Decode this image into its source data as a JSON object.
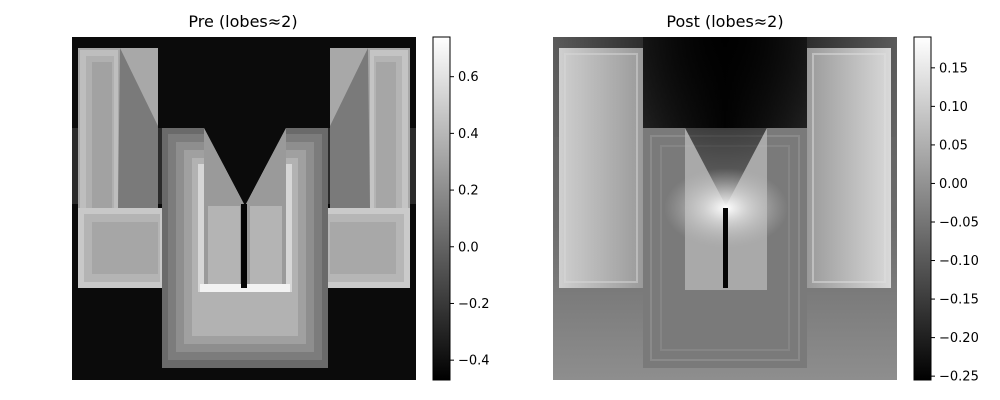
{
  "chart_data": [
    {
      "type": "heatmap",
      "title": "Pre (lobes≈2)",
      "colormap": "gray",
      "colorbar_range": [
        -0.47,
        0.74
      ],
      "colorbar_ticks": [
        0.6,
        0.4,
        0.2,
        0.0,
        -0.2,
        -0.4
      ],
      "colorbar_tick_labels": [
        "0.6",
        "0.4",
        "0.2",
        "0.0",
        "−0.2",
        "−0.4"
      ],
      "axes_visible": false,
      "grid": false
    },
    {
      "type": "heatmap",
      "title": "Post (lobes≈2)",
      "colormap": "gray",
      "colorbar_range": [
        -0.255,
        0.19
      ],
      "colorbar_ticks": [
        0.15,
        0.1,
        0.05,
        0.0,
        -0.05,
        -0.1,
        -0.15,
        -0.2,
        -0.25
      ],
      "colorbar_tick_labels": [
        "0.15",
        "0.10",
        "0.05",
        "0.00",
        "−0.05",
        "−0.10",
        "−0.15",
        "−0.20",
        "−0.25"
      ],
      "axes_visible": false,
      "grid": false
    }
  ]
}
